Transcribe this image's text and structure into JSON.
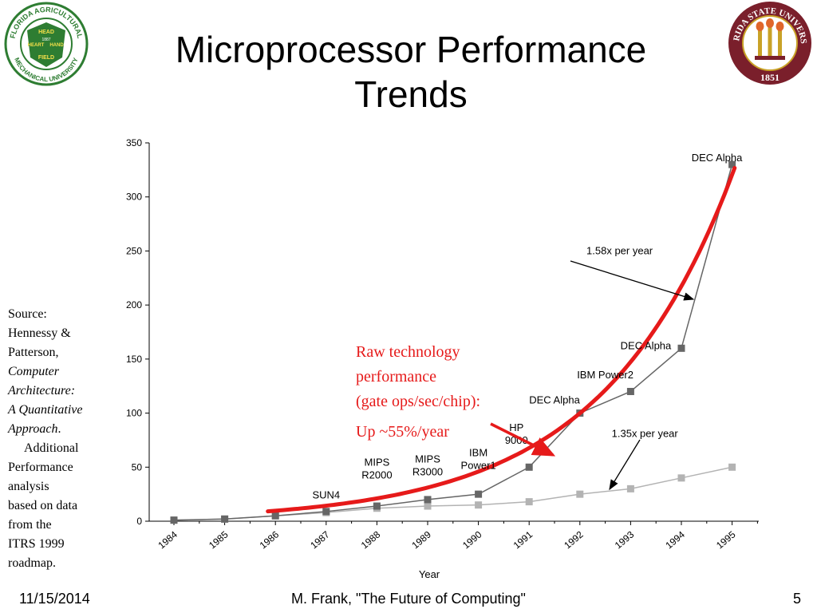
{
  "slide": {
    "title_line1": "Microprocessor Performance",
    "title_line2": "Trends"
  },
  "logos": {
    "left": {
      "name": "FAMU seal",
      "text_top": "FLORIDA AGRICULTURAL",
      "text_bottom": "MECHANICAL UNIVERSITY",
      "inner": [
        "HEAD",
        "HEART",
        "HAND",
        "FIELD",
        "1887"
      ],
      "color": "#2e7d32"
    },
    "right": {
      "name": "FSU seal",
      "text_top": "FLORIDA STATE UNIVERSITY",
      "year": "1851",
      "color": "#7a1f2b",
      "accent": "#c9a227"
    }
  },
  "source": {
    "line1": "Source:",
    "line2": "Hennessy &",
    "line3": "Patterson,",
    "line4": "Computer",
    "line5": "Architecture:",
    "line6": "A Quantitative",
    "line7": "Approach",
    "line7_tail": ".",
    "line8": "Additional",
    "line9": "Performance",
    "line10": "analysis",
    "line11": "based on data",
    "line12": "from the",
    "line13": "ITRS 1999",
    "line14": "roadmap."
  },
  "chart_data": {
    "type": "line",
    "xlabel": "Year",
    "ylabel": "",
    "x": [
      "1984",
      "1985",
      "1986",
      "1987",
      "1988",
      "1989",
      "1990",
      "1991",
      "1992",
      "1993",
      "1994",
      "1995"
    ],
    "ylim": [
      0,
      350
    ],
    "yticks": [
      0,
      50,
      100,
      150,
      200,
      250,
      300,
      350
    ],
    "grid": false,
    "series": [
      {
        "name": "",
        "color": "#666666",
        "values": [
          1,
          2,
          5,
          9,
          14,
          20,
          25,
          50,
          100,
          120,
          160,
          330
        ]
      },
      {
        "name": "",
        "color": "#b3b3b3",
        "values": [
          1,
          2,
          5,
          8,
          12,
          14,
          15,
          18,
          25,
          30,
          40,
          50
        ]
      }
    ],
    "trend": {
      "color": "#e61a1a",
      "label_line1": "Raw technology",
      "label_line2": "performance",
      "label_line3": "(gate ops/sec/chip):",
      "label_line4": "Up ~55%/year"
    },
    "point_labels": [
      {
        "text": "SUN4",
        "x": "1987",
        "y": 21
      },
      {
        "text": "MIPS",
        "text2": "R2000",
        "x": "1988",
        "y": 41
      },
      {
        "text": "MIPS",
        "text2": "R3000",
        "x": "1989",
        "y": 44
      },
      {
        "text": "IBM",
        "text2": "Power1",
        "x": "1990",
        "y": 50
      },
      {
        "text": "HP",
        "text2": "9000",
        "x": "1990.75",
        "y": 73
      },
      {
        "text": "DEC Alpha",
        "x": "1991.5",
        "y": 109
      },
      {
        "text": "IBM Power2",
        "x": "1992.5",
        "y": 132
      },
      {
        "text": "DEC Alpha",
        "x": "1993.3",
        "y": 159
      },
      {
        "text": "DEC Alpha",
        "x": "1994.7",
        "y": 333
      }
    ],
    "annotations": [
      {
        "text": "1.58x per year",
        "x": "1992.5",
        "y": 247
      },
      {
        "text": "1.35x per year",
        "x": "1993.5",
        "y": 80
      }
    ]
  },
  "footer": {
    "date": "11/15/2014",
    "center": "M. Frank, \"The Future of Computing\"",
    "page": "5"
  }
}
